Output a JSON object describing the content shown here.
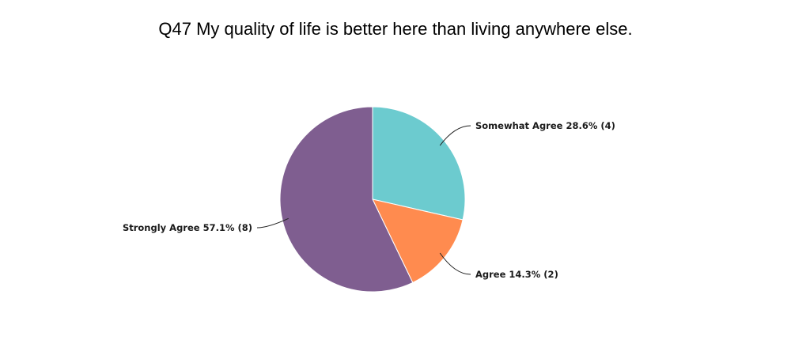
{
  "chart_data": {
    "type": "pie",
    "title": "Q47 My quality of life is better here than living anywhere else.",
    "slices": [
      {
        "label": "Somewhat Agree",
        "percent": 28.6,
        "count": 4,
        "display": "Somewhat Agree 28.6% (4)",
        "color": "#6ccbcf"
      },
      {
        "label": "Agree",
        "percent": 14.3,
        "count": 2,
        "display": "Agree 14.3% (2)",
        "color": "#ff8b4f"
      },
      {
        "label": "Strongly Agree",
        "percent": 57.1,
        "count": 8,
        "display": "Strongly Agree 57.1% (8)",
        "color": "#7f5e90"
      }
    ]
  }
}
